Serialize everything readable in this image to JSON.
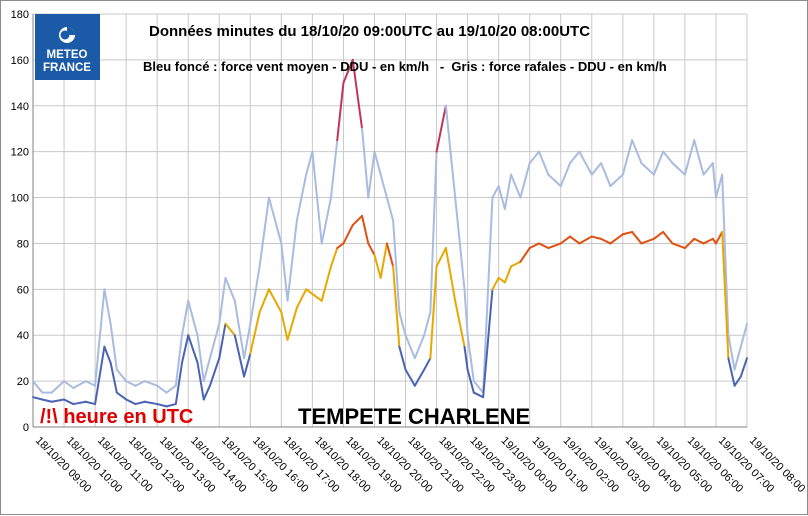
{
  "logo": {
    "line1": "METEO",
    "line2": "FRANCE",
    "color": "#1b5aa6"
  },
  "chart_data": {
    "type": "line",
    "title": "Données minutes du 18/10/20 09:00UTC au 19/10/20 08:00UTC",
    "subtitle": "Bleu foncé : force vent moyen - DDU - en km/h   -  Gris : force rafales - DDU - en km/h",
    "annotation_title": "TEMPETE CHARLENE",
    "annotation_note": "/!\\ heure en UTC",
    "ylim": [
      0,
      180
    ],
    "yticks": [
      "0",
      "20",
      "40",
      "60",
      "80",
      "100",
      "120",
      "140",
      "160",
      "180"
    ],
    "x_categories": [
      "18/10/20 09:00",
      "18/10/20 10:00",
      "18/10/20 11:00",
      "18/10/20 12:00",
      "18/10/20 13:00",
      "18/10/20 14:00",
      "18/10/20 15:00",
      "18/10/20 16:00",
      "18/10/20 17:00",
      "18/10/20 18:00",
      "18/10/20 19:00",
      "18/10/20 20:00",
      "18/10/20 21:00",
      "18/10/20 22:00",
      "18/10/20 23:00",
      "19/10/20 00:00",
      "19/10/20 01:00",
      "19/10/20 02:00",
      "19/10/20 03:00",
      "19/10/20 04:00",
      "19/10/20 05:00",
      "19/10/20 06:00",
      "19/10/20 07:00",
      "19/10/20 08:00"
    ],
    "grid": true,
    "series": [
      {
        "name": "force rafales",
        "color": "#a9bce0",
        "high_color": "#c0365a",
        "x": [
          0,
          0.3,
          0.6,
          1,
          1.3,
          1.7,
          2,
          2.3,
          2.5,
          2.7,
          3,
          3.3,
          3.6,
          4,
          4.3,
          4.6,
          4.8,
          5,
          5.3,
          5.5,
          5.7,
          6,
          6.2,
          6.5,
          6.8,
          7,
          7.3,
          7.6,
          8,
          8.2,
          8.5,
          8.8,
          9,
          9.3,
          9.6,
          9.8,
          10,
          10.3,
          10.6,
          10.8,
          11,
          11.2,
          11.4,
          11.6,
          11.8,
          12,
          12.3,
          12.6,
          12.8,
          13,
          13.3,
          13.6,
          13.9,
          14,
          14.2,
          14.5,
          14.8,
          15,
          15.2,
          15.4,
          15.7,
          16,
          16.3,
          16.6,
          17,
          17.3,
          17.6,
          18,
          18.3,
          18.6,
          19,
          19.3,
          19.6,
          20,
          20.3,
          20.6,
          21,
          21.3,
          21.6,
          21.9,
          22,
          22.2,
          22.4,
          22.6,
          22.8,
          23
        ],
        "values": [
          20,
          15,
          15,
          20,
          17,
          20,
          18,
          60,
          45,
          25,
          20,
          18,
          20,
          18,
          15,
          18,
          40,
          55,
          40,
          20,
          30,
          45,
          65,
          55,
          30,
          45,
          70,
          100,
          80,
          55,
          90,
          110,
          120,
          80,
          100,
          125,
          150,
          160,
          130,
          100,
          120,
          110,
          100,
          90,
          50,
          40,
          30,
          40,
          50,
          120,
          140,
          100,
          60,
          40,
          20,
          15,
          100,
          105,
          95,
          110,
          100,
          115,
          120,
          110,
          105,
          115,
          120,
          110,
          115,
          105,
          110,
          125,
          115,
          110,
          120,
          115,
          110,
          125,
          110,
          115,
          100,
          110,
          40,
          25,
          35,
          45
        ]
      },
      {
        "name": "force vent moyen",
        "color": "#4a64b3",
        "mid_color": "#e8a800",
        "high_color": "#e05010",
        "x": [
          0,
          0.3,
          0.6,
          1,
          1.3,
          1.7,
          2,
          2.3,
          2.5,
          2.7,
          3,
          3.3,
          3.6,
          4,
          4.3,
          4.6,
          4.8,
          5,
          5.3,
          5.5,
          5.7,
          6,
          6.2,
          6.5,
          6.8,
          7,
          7.3,
          7.6,
          8,
          8.2,
          8.5,
          8.8,
          9,
          9.3,
          9.6,
          9.8,
          10,
          10.3,
          10.6,
          10.8,
          11,
          11.2,
          11.4,
          11.6,
          11.8,
          12,
          12.3,
          12.6,
          12.8,
          13,
          13.3,
          13.6,
          13.9,
          14,
          14.2,
          14.5,
          14.8,
          15,
          15.2,
          15.4,
          15.7,
          16,
          16.3,
          16.6,
          17,
          17.3,
          17.6,
          18,
          18.3,
          18.6,
          19,
          19.3,
          19.6,
          20,
          20.3,
          20.6,
          21,
          21.3,
          21.6,
          21.9,
          22,
          22.2,
          22.4,
          22.6,
          22.8,
          23
        ],
        "values": [
          13,
          12,
          11,
          12,
          10,
          11,
          10,
          35,
          28,
          15,
          12,
          10,
          11,
          10,
          9,
          10,
          28,
          40,
          28,
          12,
          18,
          30,
          45,
          40,
          22,
          32,
          50,
          60,
          50,
          38,
          52,
          60,
          58,
          55,
          70,
          78,
          80,
          88,
          92,
          80,
          75,
          65,
          80,
          70,
          35,
          25,
          18,
          25,
          30,
          70,
          78,
          55,
          35,
          25,
          15,
          13,
          60,
          65,
          63,
          70,
          72,
          78,
          80,
          78,
          80,
          83,
          80,
          83,
          82,
          80,
          84,
          85,
          80,
          82,
          85,
          80,
          78,
          82,
          80,
          82,
          80,
          85,
          30,
          18,
          22,
          30
        ]
      }
    ]
  }
}
